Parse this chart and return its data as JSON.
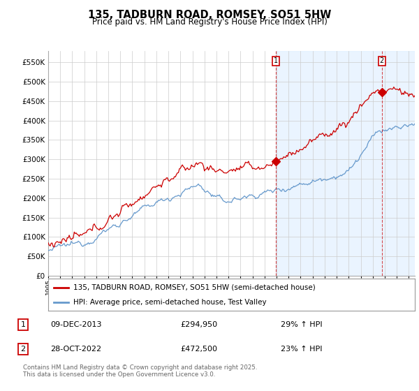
{
  "title": "135, TADBURN ROAD, ROMSEY, SO51 5HW",
  "subtitle": "Price paid vs. HM Land Registry's House Price Index (HPI)",
  "legend_label_red": "135, TADBURN ROAD, ROMSEY, SO51 5HW (semi-detached house)",
  "legend_label_blue": "HPI: Average price, semi-detached house, Test Valley",
  "transaction1_date": "09-DEC-2013",
  "transaction1_price": "£294,950",
  "transaction1_hpi": "29% ↑ HPI",
  "transaction2_date": "28-OCT-2022",
  "transaction2_price": "£472,500",
  "transaction2_hpi": "23% ↑ HPI",
  "footnote": "Contains HM Land Registry data © Crown copyright and database right 2025.\nThis data is licensed under the Open Government Licence v3.0.",
  "color_red": "#cc0000",
  "color_blue": "#6699cc",
  "color_shade": "#ddeeff",
  "ylim_min": 0,
  "ylim_max": 580000,
  "yticks": [
    0,
    50000,
    100000,
    150000,
    200000,
    250000,
    300000,
    350000,
    400000,
    450000,
    500000,
    550000
  ],
  "background_color": "#ffffff",
  "grid_color": "#cccccc",
  "year_start": 1995,
  "year_end": 2025,
  "t1_year": 2013.917,
  "t1_price": 294950,
  "t2_year": 2022.75,
  "t2_price": 472500
}
